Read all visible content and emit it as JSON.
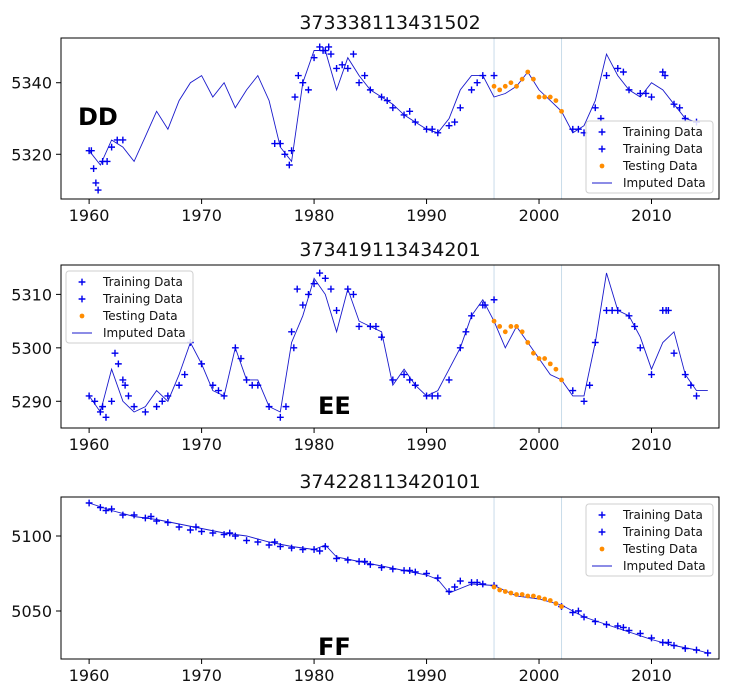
{
  "colors": {
    "training": "#0000ee",
    "testing": "#ff8c00",
    "imputed": "#1a1acc",
    "split_line": "#c8dcea"
  },
  "chart_data": [
    {
      "type": "line",
      "title": "373338113431502",
      "panel_label": "DD",
      "xlim": [
        1957.5,
        2016
      ],
      "ylim": [
        5307.5,
        5352.5
      ],
      "xticks": [
        1960,
        1970,
        1980,
        1990,
        2000,
        2010
      ],
      "xtick_labels": [
        "1960",
        "1970",
        "1980",
        "1990",
        "2000",
        "2010"
      ],
      "yticks": [
        5320,
        5340
      ],
      "ytick_labels": [
        "5320",
        "5340"
      ],
      "split_lines": [
        1996,
        2002
      ],
      "legend": {
        "position": "lower-right",
        "entries": [
          "Training Data",
          "Training Data",
          "Testing Data",
          "Imputed Data"
        ]
      },
      "imputed": {
        "x": [
          1960,
          1961,
          1962,
          1963,
          1964,
          1965,
          1966,
          1967,
          1968,
          1969,
          1970,
          1971,
          1972,
          1973,
          1974,
          1975,
          1976,
          1977,
          1978,
          1979,
          1980,
          1981,
          1982,
          1983,
          1984,
          1985,
          1986,
          1987,
          1988,
          1989,
          1990,
          1991,
          1992,
          1993,
          1994,
          1995,
          1996,
          1997,
          1998,
          1999,
          2000,
          2001,
          2002,
          2003,
          2004,
          2005,
          2006,
          2007,
          2008,
          2009,
          2010,
          2011,
          2012,
          2013,
          2014
        ],
        "y": [
          5321,
          5317,
          5324,
          5322,
          5318,
          5325,
          5332,
          5327,
          5335,
          5340,
          5342,
          5336,
          5340,
          5333,
          5338,
          5342,
          5335,
          5322,
          5318,
          5340,
          5349,
          5349,
          5338,
          5347,
          5342,
          5338,
          5336,
          5334,
          5331,
          5329,
          5327,
          5326,
          5330,
          5338,
          5342,
          5342,
          5336,
          5337,
          5339,
          5343,
          5338,
          5335,
          5332,
          5326,
          5328,
          5335,
          5348,
          5342,
          5338,
          5336,
          5340,
          5338,
          5334,
          5330,
          5329
        ]
      },
      "train1": {
        "x": [
          1960,
          1960.2,
          1960.4,
          1960.6,
          1960.8,
          1961.2,
          1961.6,
          1962,
          1962.5,
          1963,
          1976.5,
          1977,
          1977.4,
          1977.8,
          1978,
          1978.3,
          1978.6,
          1979,
          1979.5,
          1980,
          1980.5,
          1981,
          1981.5,
          1982,
          1983,
          1983.5,
          1984,
          1985,
          1986,
          1987,
          1988,
          1989,
          1990,
          1991,
          1992,
          1993,
          1994,
          1995,
          1996,
          2003,
          2004,
          2005,
          2006,
          2007,
          2008,
          2009,
          2010,
          2011,
          2012,
          2013,
          2014
        ],
        "y": [
          5321,
          5321,
          5316,
          5312,
          5310,
          5318,
          5318,
          5322,
          5324,
          5324,
          5323,
          5323,
          5320,
          5317,
          5321,
          5336,
          5342,
          5340,
          5338,
          5347,
          5350,
          5349,
          5348,
          5344,
          5344,
          5348,
          5340,
          5338,
          5336,
          5333,
          5331,
          5329,
          5327,
          5326,
          5328,
          5333,
          5338,
          5342,
          5342,
          5327,
          5326,
          5333,
          5342,
          5344,
          5338,
          5337,
          5336,
          5343,
          5334,
          5330,
          5329
        ]
      },
      "train2": {
        "x": [
          1980.8,
          1981.3,
          1982.5,
          1984.5,
          1986.5,
          1988.5,
          1990.5,
          1992.5,
          1994.5,
          2003.5,
          2005.5,
          2007.5,
          2009.5,
          2011.2,
          2012.5
        ],
        "y": [
          5349,
          5350,
          5345,
          5342,
          5335,
          5332,
          5327,
          5329,
          5340,
          5327,
          5330,
          5343,
          5337,
          5342,
          5333
        ]
      },
      "test": {
        "x": [
          1996,
          1996.5,
          1997,
          1997.5,
          1998,
          1998.5,
          1999,
          1999.5,
          2000,
          2000.5,
          2001,
          2001.5,
          2002
        ],
        "y": [
          5339,
          5338,
          5339,
          5340,
          5339,
          5341,
          5343,
          5341,
          5336,
          5336,
          5336,
          5335,
          5332
        ]
      }
    },
    {
      "type": "line",
      "title": "373419113434201",
      "panel_label": "EE",
      "xlim": [
        1957.5,
        2016
      ],
      "ylim": [
        5285,
        5315.5
      ],
      "xticks": [
        1960,
        1970,
        1980,
        1990,
        2000,
        2010
      ],
      "xtick_labels": [
        "1960",
        "1970",
        "1980",
        "1990",
        "2000",
        "2010"
      ],
      "yticks": [
        5290,
        5300,
        5310
      ],
      "ytick_labels": [
        "5290",
        "5300",
        "5310"
      ],
      "split_lines": [
        1996,
        2002
      ],
      "legend": {
        "position": "upper-left",
        "entries": [
          "Training Data",
          "Training Data",
          "Testing Data",
          "Imputed Data"
        ]
      },
      "imputed": {
        "x": [
          1960,
          1961,
          1962,
          1963,
          1964,
          1965,
          1966,
          1967,
          1968,
          1969,
          1970,
          1971,
          1972,
          1973,
          1974,
          1975,
          1976,
          1977,
          1978,
          1979,
          1980,
          1981,
          1982,
          1983,
          1984,
          1985,
          1986,
          1987,
          1988,
          1989,
          1990,
          1991,
          1992,
          1993,
          1994,
          1995,
          1996,
          1997,
          1998,
          1999,
          2000,
          2001,
          2002,
          2003,
          2004,
          2005,
          2006,
          2007,
          2008,
          2009,
          2010,
          2011,
          2012,
          2013,
          2014,
          2015
        ],
        "y": [
          5291,
          5288,
          5296,
          5290,
          5288,
          5289,
          5292,
          5290,
          5295,
          5301,
          5297,
          5292,
          5291,
          5300,
          5294,
          5294,
          5289,
          5288,
          5301,
          5306,
          5313,
          5310,
          5303,
          5311,
          5305,
          5304,
          5303,
          5293,
          5296,
          5293,
          5291,
          5292,
          5296,
          5300,
          5306,
          5309,
          5305,
          5300,
          5304,
          5301,
          5298,
          5295,
          5294,
          5291,
          5291,
          5301,
          5314,
          5307,
          5306,
          5302,
          5296,
          5301,
          5303,
          5295,
          5292,
          5292
        ]
      },
      "train1": {
        "x": [
          1960,
          1960.5,
          1961,
          1961.5,
          1962,
          1962.3,
          1962.6,
          1963,
          1963.5,
          1964,
          1965,
          1966,
          1967,
          1968,
          1969,
          1970,
          1971,
          1972,
          1973,
          1973.5,
          1974,
          1975,
          1976,
          1977,
          1977.5,
          1978,
          1978.5,
          1979,
          1980,
          1980.5,
          1981,
          1982,
          1983,
          1984,
          1985,
          1986,
          1987,
          1988,
          1989,
          1990,
          1991,
          1992,
          1993,
          1994,
          1995,
          1996,
          2003,
          2004,
          2005,
          2006,
          2007,
          2008,
          2009,
          2010,
          2011,
          2011.5,
          2012,
          2013,
          2014
        ],
        "y": [
          5291,
          5290,
          5288,
          5287,
          5290,
          5299,
          5297,
          5294,
          5291,
          5289,
          5288,
          5289,
          5291,
          5293,
          5301,
          5297,
          5293,
          5291,
          5300,
          5298,
          5294,
          5293,
          5289,
          5287,
          5289,
          5303,
          5311,
          5308,
          5312,
          5314,
          5313,
          5307,
          5311,
          5304,
          5304,
          5302,
          5294,
          5295,
          5293,
          5291,
          5291,
          5294,
          5300,
          5306,
          5308,
          5309,
          5292,
          5290,
          5301,
          5307,
          5307,
          5306,
          5300,
          5295,
          5307,
          5307,
          5299,
          5295,
          5291
        ]
      },
      "train2": {
        "x": [
          1961.2,
          1963.2,
          1966.5,
          1968.5,
          1971.5,
          1974.5,
          1978.2,
          1979.5,
          1981.5,
          1983.5,
          1985.5,
          1988.5,
          1990.5,
          1993.5,
          1995.2,
          2004.5,
          2006.5,
          2008.5,
          2011.3,
          2013.5
        ],
        "y": [
          5289,
          5293,
          5290,
          5295,
          5292,
          5293,
          5300,
          5310,
          5311,
          5310,
          5304,
          5294,
          5291,
          5303,
          5308,
          5293,
          5307,
          5304,
          5307,
          5293
        ]
      },
      "test": {
        "x": [
          1996,
          1996.5,
          1997,
          1997.5,
          1998,
          1998.5,
          1999,
          1999.5,
          2000,
          2000.5,
          2001,
          2001.5,
          2002
        ],
        "y": [
          5305,
          5304,
          5303,
          5304,
          5304,
          5303,
          5301,
          5299,
          5298,
          5298,
          5297,
          5296,
          5294
        ]
      }
    },
    {
      "type": "line",
      "title": "374228113420101",
      "panel_label": "FF",
      "xlim": [
        1957.5,
        2016
      ],
      "ylim": [
        5018,
        5126
      ],
      "xticks": [
        1960,
        1970,
        1980,
        1990,
        2000,
        2010
      ],
      "xtick_labels": [
        "1960",
        "1970",
        "1980",
        "1990",
        "2000",
        "2010"
      ],
      "yticks": [
        5050,
        5100
      ],
      "ytick_labels": [
        "5050",
        "5100"
      ],
      "split_lines": [
        1996,
        2002
      ],
      "legend": {
        "position": "upper-right",
        "entries": [
          "Training Data",
          "Training Data",
          "Testing Data",
          "Imputed Data"
        ]
      },
      "imputed": {
        "x": [
          1960,
          1962,
          1964,
          1966,
          1968,
          1970,
          1972,
          1974,
          1976,
          1978,
          1980,
          1981,
          1982,
          1984,
          1986,
          1988,
          1990,
          1991,
          1992,
          1994,
          1996,
          1998,
          2000,
          2002,
          2004,
          2006,
          2008,
          2010,
          2012,
          2014,
          2015
        ],
        "y": [
          5122,
          5117,
          5113,
          5111,
          5108,
          5105,
          5102,
          5100,
          5096,
          5093,
          5091,
          5094,
          5086,
          5083,
          5080,
          5077,
          5074,
          5071,
          5062,
          5068,
          5067,
          5060,
          5058,
          5054,
          5046,
          5041,
          5036,
          5031,
          5027,
          5024,
          5022
        ]
      },
      "train1": {
        "x": [
          1960,
          1961,
          1962,
          1963,
          1964,
          1965,
          1966,
          1967,
          1968,
          1969,
          1970,
          1971,
          1972,
          1973,
          1974,
          1975,
          1976,
          1977,
          1978,
          1979,
          1980,
          1981,
          1982,
          1983,
          1984,
          1985,
          1986,
          1987,
          1988,
          1989,
          1990,
          1991,
          1992,
          1993,
          1994,
          1995,
          1996,
          2002,
          2003,
          2004,
          2005,
          2006,
          2007,
          2008,
          2009,
          2010,
          2011,
          2012,
          2013,
          2014,
          2015
        ],
        "y": [
          5122,
          5119,
          5118,
          5114,
          5114,
          5112,
          5110,
          5109,
          5106,
          5104,
          5103,
          5102,
          5101,
          5100,
          5097,
          5096,
          5094,
          5093,
          5092,
          5091,
          5091,
          5093,
          5085,
          5084,
          5083,
          5081,
          5079,
          5078,
          5077,
          5076,
          5075,
          5072,
          5063,
          5070,
          5069,
          5068,
          5067,
          5053,
          5049,
          5046,
          5043,
          5041,
          5040,
          5037,
          5035,
          5032,
          5029,
          5027,
          5025,
          5024,
          5022
        ]
      },
      "train2": {
        "x": [
          1961.5,
          1965.5,
          1969.5,
          1972.5,
          1976.5,
          1980.5,
          1984.5,
          1988.5,
          1992.5,
          1994.5,
          2003.5,
          2007.5,
          2011.5
        ],
        "y": [
          5117,
          5113,
          5106,
          5102,
          5096,
          5090,
          5083,
          5077,
          5066,
          5069,
          5050,
          5039,
          5029
        ]
      },
      "test": {
        "x": [
          1996,
          1996.5,
          1997,
          1997.5,
          1998,
          1998.5,
          1999,
          1999.5,
          2000,
          2000.5,
          2001,
          2001.5,
          2002
        ],
        "y": [
          5066,
          5064,
          5063,
          5062,
          5061,
          5061,
          5060,
          5060,
          5059,
          5058,
          5057,
          5055,
          5053
        ]
      }
    }
  ]
}
